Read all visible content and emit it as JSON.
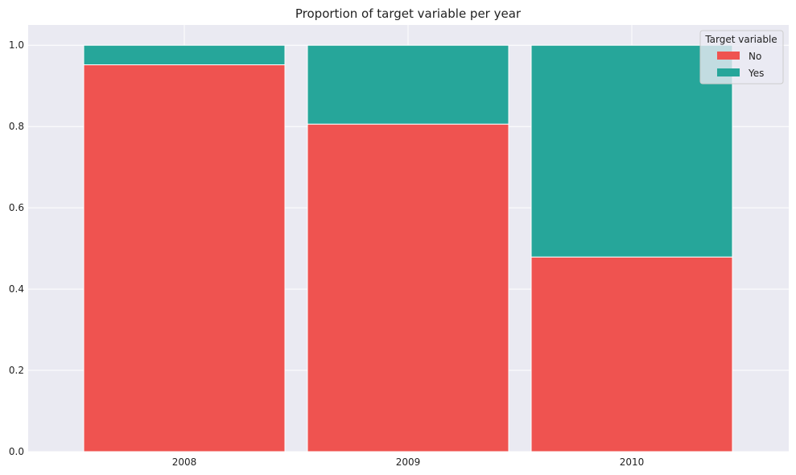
{
  "chart_data": {
    "type": "bar",
    "stacked": true,
    "title": "Proportion of target variable per year",
    "xlabel": "",
    "ylabel": "",
    "categories": [
      "2008",
      "2009",
      "2010"
    ],
    "series": [
      {
        "name": "No",
        "values": [
          0.952,
          0.806,
          0.479
        ],
        "color": "#ef5350"
      },
      {
        "name": "Yes",
        "values": [
          0.048,
          0.194,
          0.521
        ],
        "color": "#26a69a"
      }
    ],
    "ylim": [
      0,
      1.05
    ],
    "yticks": [
      "0.0",
      "0.2",
      "0.4",
      "0.6",
      "0.8",
      "1.0"
    ],
    "grid": true,
    "legend": {
      "title": "Target variable",
      "placement": "top-right"
    },
    "colors": {
      "plot_background": "#eaeaf2",
      "grid": "#ffffff"
    }
  }
}
